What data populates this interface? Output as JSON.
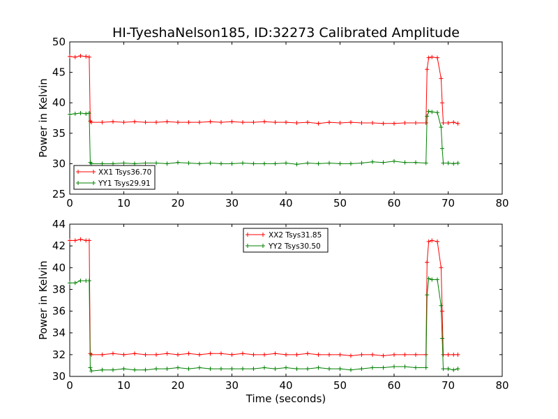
{
  "chart_data": {
    "type": "line",
    "title": "HI-TyeshaNelson185, ID:32273 Calibrated Amplitude",
    "panels": [
      {
        "xlabel": "",
        "ylabel": "Power in Kelvin",
        "xlim": [
          0,
          80
        ],
        "ylim": [
          25,
          50
        ],
        "xticks": [
          0,
          10,
          20,
          30,
          40,
          50,
          60,
          70,
          80
        ],
        "yticks": [
          25,
          30,
          35,
          40,
          45,
          50
        ],
        "legend_position": "lower-left",
        "series": [
          {
            "name": "XX1 Tsys36.70",
            "color": "#ff0000",
            "x": [
              0,
              1,
              2,
              3,
              3.6,
              3.8,
              4,
              6,
              8,
              10,
              12,
              14,
              16,
              18,
              20,
              22,
              24,
              26,
              28,
              30,
              32,
              34,
              36,
              38,
              40,
              42,
              44,
              46,
              48,
              50,
              52,
              54,
              56,
              58,
              60,
              62,
              64,
              65.9,
              66.1,
              66.4,
              67,
              68,
              68.7,
              68.9,
              69.1,
              70,
              71,
              71.8
            ],
            "y": [
              47.6,
              47.5,
              47.7,
              47.6,
              47.5,
              37.0,
              36.8,
              36.8,
              36.9,
              36.8,
              36.9,
              36.8,
              36.8,
              36.9,
              36.8,
              36.8,
              36.8,
              36.9,
              36.8,
              36.9,
              36.8,
              36.8,
              36.9,
              36.8,
              36.8,
              36.7,
              36.8,
              36.6,
              36.8,
              36.7,
              36.8,
              36.7,
              36.7,
              36.6,
              36.6,
              36.7,
              36.7,
              36.7,
              45.5,
              47.4,
              47.5,
              47.4,
              44.0,
              40.0,
              36.7,
              36.7,
              36.8,
              36.6
            ]
          },
          {
            "name": "YY1 Tsys29.91",
            "color": "#008000",
            "x": [
              0,
              1,
              2,
              3,
              3.6,
              3.8,
              4,
              6,
              8,
              10,
              12,
              14,
              16,
              18,
              20,
              22,
              24,
              26,
              28,
              30,
              32,
              34,
              36,
              38,
              40,
              42,
              44,
              46,
              48,
              50,
              52,
              54,
              56,
              58,
              60,
              62,
              64,
              65.9,
              66.1,
              66.4,
              67,
              68,
              68.7,
              68.9,
              69.1,
              70,
              71,
              71.8
            ],
            "y": [
              38.1,
              38.2,
              38.3,
              38.2,
              38.3,
              30.2,
              30.0,
              30.0,
              30.0,
              30.1,
              30.0,
              30.1,
              30.1,
              30.0,
              30.2,
              30.1,
              30.0,
              30.1,
              30.0,
              30.0,
              30.1,
              30.0,
              30.0,
              30.0,
              30.1,
              29.9,
              30.1,
              30.0,
              30.1,
              30.0,
              30.0,
              30.1,
              30.3,
              30.2,
              30.4,
              30.2,
              30.2,
              30.1,
              37.8,
              38.6,
              38.5,
              38.4,
              36.0,
              32.5,
              30.1,
              30.1,
              30.0,
              30.1
            ]
          }
        ]
      },
      {
        "xlabel": "Time (seconds)",
        "ylabel": "Power in Kelvin",
        "xlim": [
          0,
          80
        ],
        "ylim": [
          30,
          44
        ],
        "xticks": [
          0,
          10,
          20,
          30,
          40,
          50,
          60,
          70,
          80
        ],
        "yticks": [
          30,
          32,
          34,
          36,
          38,
          40,
          42,
          44
        ],
        "legend_position": "upper-center",
        "series": [
          {
            "name": "XX2 Tsys31.85",
            "color": "#ff0000",
            "x": [
              0,
              1,
              2,
              3,
              3.6,
              3.8,
              4,
              6,
              8,
              10,
              12,
              14,
              16,
              18,
              20,
              22,
              24,
              26,
              28,
              30,
              32,
              34,
              36,
              38,
              40,
              42,
              44,
              46,
              48,
              50,
              52,
              54,
              56,
              58,
              60,
              62,
              64,
              65.9,
              66.1,
              66.4,
              67,
              68,
              68.7,
              68.9,
              69.1,
              70,
              71,
              71.8
            ],
            "y": [
              42.5,
              42.5,
              42.6,
              42.5,
              42.5,
              32.1,
              32.0,
              32.0,
              32.1,
              32.0,
              32.1,
              32.0,
              32.0,
              32.1,
              32.0,
              32.1,
              32.0,
              32.1,
              32.1,
              32.0,
              32.1,
              32.0,
              32.0,
              32.1,
              32.0,
              32.0,
              32.1,
              32.0,
              32.0,
              32.0,
              31.9,
              32.0,
              32.0,
              31.9,
              32.0,
              32.0,
              32.0,
              32.0,
              40.5,
              42.4,
              42.5,
              42.4,
              40.0,
              36.0,
              32.0,
              32.0,
              32.0,
              32.0
            ]
          },
          {
            "name": "YY2 Tsys30.50",
            "color": "#008000",
            "x": [
              0,
              1,
              2,
              3,
              3.6,
              3.8,
              4,
              6,
              8,
              10,
              12,
              14,
              16,
              18,
              20,
              22,
              24,
              26,
              28,
              30,
              32,
              34,
              36,
              38,
              40,
              42,
              44,
              46,
              48,
              50,
              52,
              54,
              56,
              58,
              60,
              62,
              64,
              65.9,
              66.1,
              66.4,
              67,
              68,
              68.7,
              68.9,
              69.1,
              70,
              71,
              71.8
            ],
            "y": [
              38.6,
              38.6,
              38.8,
              38.8,
              38.8,
              30.8,
              30.5,
              30.6,
              30.6,
              30.7,
              30.6,
              30.6,
              30.7,
              30.7,
              30.8,
              30.7,
              30.8,
              30.7,
              30.7,
              30.7,
              30.7,
              30.7,
              30.8,
              30.7,
              30.8,
              30.7,
              30.7,
              30.8,
              30.7,
              30.7,
              30.6,
              30.7,
              30.8,
              30.8,
              30.9,
              30.9,
              30.8,
              30.8,
              37.5,
              39.0,
              38.9,
              38.9,
              36.5,
              33.5,
              30.7,
              30.7,
              30.6,
              30.7
            ]
          }
        ]
      }
    ]
  }
}
